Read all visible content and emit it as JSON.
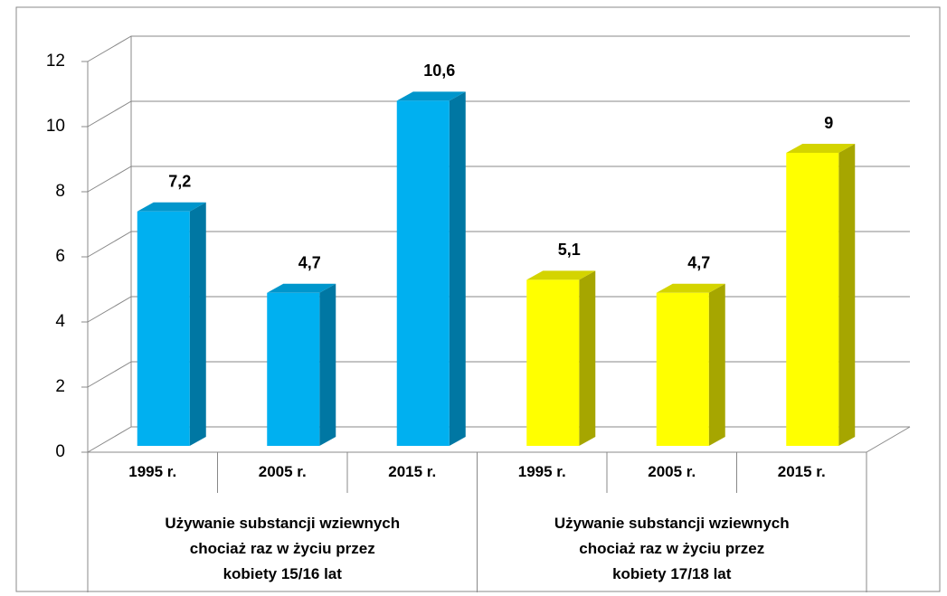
{
  "chart_data": {
    "type": "bar3d",
    "ylim": [
      0,
      12
    ],
    "yticks": [
      0,
      2,
      4,
      6,
      8,
      10,
      12
    ],
    "grid": true,
    "groups": [
      {
        "label": "Używanie substancji wziewnych chociaż raz w życiu przez kobiety 15/16 lat",
        "categories": [
          "1995 r.",
          "2005 r.",
          "2015 r."
        ],
        "values": [
          7.2,
          4.7,
          10.6
        ],
        "value_labels": [
          "7,2",
          "4,7",
          "10,6"
        ],
        "color": "#00b0f0",
        "side_color": "#0077a3",
        "top_color": "#0096cc"
      },
      {
        "label": "Używanie substancji wziewnych chociaż raz w życiu przez kobiety 17/18 lat",
        "categories": [
          "1995 r.",
          "2005 r.",
          "2015 r."
        ],
        "values": [
          5.1,
          4.7,
          9
        ],
        "value_labels": [
          "5,1",
          "4,7",
          "9"
        ],
        "color": "#ffff00",
        "side_color": "#a6a600",
        "top_color": "#d4d400"
      }
    ]
  }
}
